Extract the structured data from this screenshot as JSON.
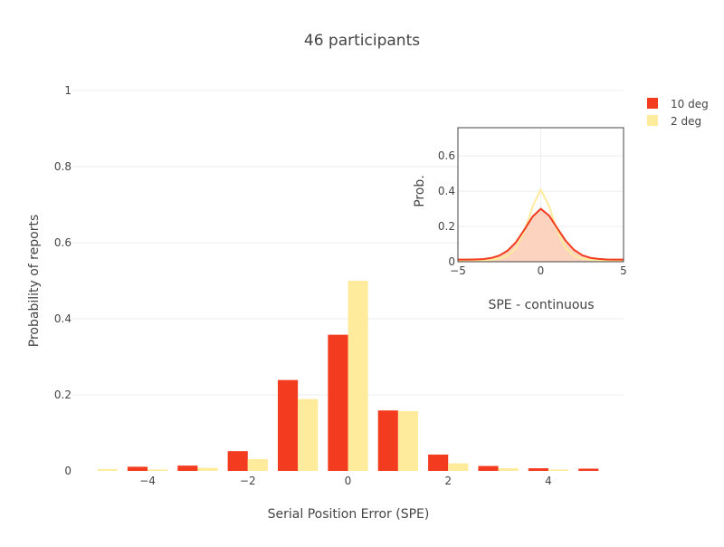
{
  "chart_data": [
    {
      "type": "bar",
      "title": "46 participants",
      "xlabel": "Serial Position Error (SPE)",
      "ylabel": "Probability of reports",
      "x": [
        -5,
        -4,
        -3,
        -2,
        -1,
        0,
        1,
        2,
        3,
        4,
        5
      ],
      "xlim": [
        -5,
        5
      ],
      "ylim": [
        0,
        1
      ],
      "x_ticks": [
        -4,
        -2,
        0,
        2,
        4
      ],
      "x_tick_labels": [
        "−4",
        "−2",
        "0",
        "2",
        "4"
      ],
      "y_ticks": [
        0,
        0.2,
        0.4,
        0.6,
        0.8,
        1
      ],
      "y_tick_labels": [
        "0",
        "0.2",
        "0.4",
        "0.6",
        "0.8",
        "1"
      ],
      "grid": true,
      "legend_position": "top-right",
      "series": [
        {
          "name": "10 deg",
          "color": "#f33b1f",
          "values": [
            0.0,
            0.011,
            0.014,
            0.052,
            0.239,
            0.358,
            0.159,
            0.043,
            0.013,
            0.007,
            0.006
          ]
        },
        {
          "name": "2 deg",
          "color": "#ffeb9c",
          "values": [
            0.005,
            0.004,
            0.008,
            0.031,
            0.189,
            0.5,
            0.157,
            0.02,
            0.007,
            0.004,
            0.0
          ]
        }
      ]
    },
    {
      "type": "area",
      "title": "",
      "xlabel": "SPE - continuous",
      "ylabel": "Prob.",
      "xlim": [
        -5,
        5
      ],
      "ylim": [
        0,
        0.76
      ],
      "x_ticks": [
        -5,
        0,
        5
      ],
      "x_tick_labels": [
        "−5",
        "0",
        "5"
      ],
      "y_ticks": [
        0,
        0.2,
        0.4,
        0.6
      ],
      "y_tick_labels": [
        "0",
        "0.2",
        "0.4",
        "0.6"
      ],
      "grid": true,
      "x": [
        -5,
        -4.5,
        -4,
        -3.5,
        -3,
        -2.5,
        -2,
        -1.5,
        -1,
        -0.5,
        0,
        0.5,
        1,
        1.5,
        2,
        2.5,
        3,
        3.5,
        4,
        4.5,
        5
      ],
      "series": [
        {
          "name": "10 deg",
          "color": "#f33b1f",
          "fill": "#fbd3bf",
          "values": [
            0.012,
            0.012,
            0.013,
            0.015,
            0.021,
            0.035,
            0.063,
            0.11,
            0.18,
            0.255,
            0.3,
            0.262,
            0.19,
            0.12,
            0.068,
            0.037,
            0.022,
            0.016,
            0.013,
            0.012,
            0.012
          ]
        },
        {
          "name": "2 deg",
          "color": "#ffeb9c",
          "values": [
            0.006,
            0.006,
            0.006,
            0.008,
            0.011,
            0.018,
            0.034,
            0.075,
            0.17,
            0.31,
            0.41,
            0.315,
            0.175,
            0.078,
            0.035,
            0.018,
            0.011,
            0.008,
            0.006,
            0.006,
            0.006
          ]
        }
      ]
    }
  ]
}
